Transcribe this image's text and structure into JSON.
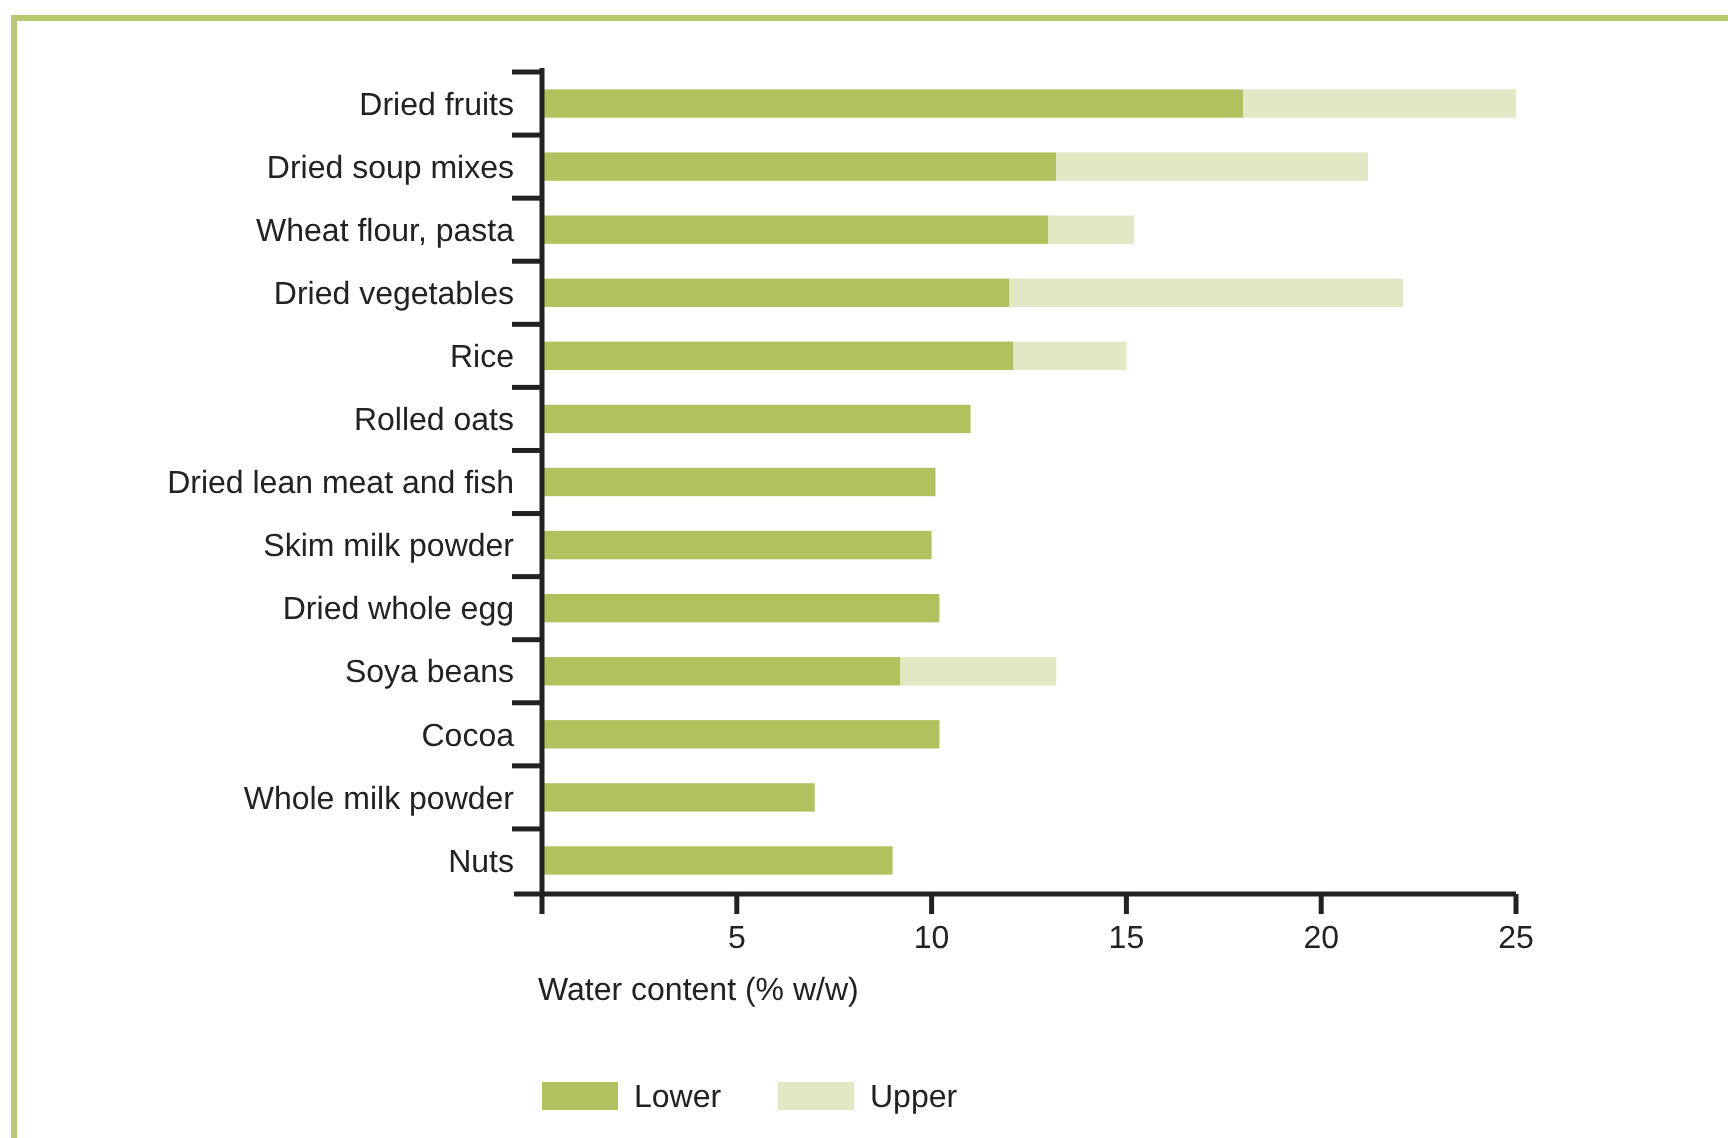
{
  "chart_data": {
    "type": "bar",
    "orientation": "horizontal",
    "stacked": true,
    "xlabel": "Water content (% w/w)",
    "categories": [
      "Dried fruits",
      "Dried soup mixes",
      "Wheat flour, pasta",
      "Dried vegetables",
      "Rice",
      "Rolled oats",
      "Dried lean meat and fish",
      "Skim milk powder",
      "Dried whole egg",
      "Soya beans",
      "Cocoa",
      "Whole milk powder",
      "Nuts"
    ],
    "series": [
      {
        "name": "Lower",
        "color": "#b0c25e",
        "values": [
          18.0,
          13.2,
          13.0,
          12.0,
          12.1,
          11.0,
          10.1,
          10.0,
          10.2,
          9.2,
          10.2,
          7.0,
          9.0
        ]
      },
      {
        "name": "Upper",
        "color": "#e1e8c4",
        "values": [
          7.0,
          8.0,
          2.2,
          10.1,
          2.9,
          null,
          null,
          null,
          null,
          4.0,
          null,
          null,
          null
        ]
      }
    ],
    "xlim": [
      0,
      25
    ],
    "xticks": [
      {
        "value": 0,
        "label": null
      },
      5,
      10,
      15,
      20,
      25
    ],
    "grid": false,
    "legend": "bottom"
  }
}
